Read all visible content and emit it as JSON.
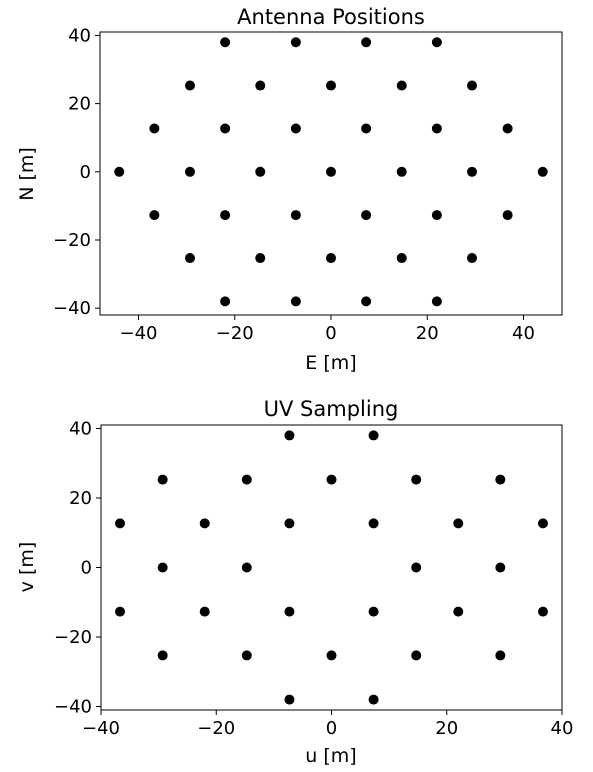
{
  "chart_data": [
    {
      "type": "scatter",
      "title": "Antenna Positions",
      "xlabel": "E [m]",
      "ylabel": "N [m]",
      "xlim": [
        -48,
        48
      ],
      "ylim": [
        -42,
        41
      ],
      "xticks": [
        -40,
        -20,
        0,
        20,
        40
      ],
      "yticks": [
        -40,
        -20,
        0,
        20,
        40
      ],
      "xticklabels": [
        "−40",
        "−20",
        "0",
        "20",
        "40"
      ],
      "yticklabels": [
        "−40",
        "−20",
        "0",
        "20",
        "40"
      ],
      "grid": false,
      "marker_color": "#000000",
      "points": [
        [
          -22,
          38
        ],
        [
          -7.3,
          38
        ],
        [
          7.3,
          38
        ],
        [
          22,
          38
        ],
        [
          -29.3,
          25.3
        ],
        [
          -14.7,
          25.3
        ],
        [
          0,
          25.3
        ],
        [
          14.7,
          25.3
        ],
        [
          29.3,
          25.3
        ],
        [
          -36.7,
          12.7
        ],
        [
          -22,
          12.7
        ],
        [
          -7.3,
          12.7
        ],
        [
          7.3,
          12.7
        ],
        [
          22,
          12.7
        ],
        [
          36.7,
          12.7
        ],
        [
          -44,
          0
        ],
        [
          -29.3,
          0
        ],
        [
          -14.7,
          0
        ],
        [
          0,
          0
        ],
        [
          14.7,
          0
        ],
        [
          29.3,
          0
        ],
        [
          44,
          0
        ],
        [
          -36.7,
          -12.7
        ],
        [
          -22,
          -12.7
        ],
        [
          -7.3,
          -12.7
        ],
        [
          7.3,
          -12.7
        ],
        [
          22,
          -12.7
        ],
        [
          36.7,
          -12.7
        ],
        [
          -29.3,
          -25.3
        ],
        [
          -14.7,
          -25.3
        ],
        [
          0,
          -25.3
        ],
        [
          14.7,
          -25.3
        ],
        [
          29.3,
          -25.3
        ],
        [
          -22,
          -38
        ],
        [
          -7.3,
          -38
        ],
        [
          7.3,
          -38
        ],
        [
          22,
          -38
        ]
      ]
    },
    {
      "type": "scatter",
      "title": "UV Sampling",
      "xlabel": "u [m]",
      "ylabel": "v [m]",
      "xlim": [
        -40,
        40
      ],
      "ylim": [
        -41,
        41
      ],
      "xticks": [
        -40,
        -20,
        0,
        20,
        40
      ],
      "yticks": [
        -40,
        -20,
        0,
        20,
        40
      ],
      "xticklabels": [
        "−40",
        "−20",
        "0",
        "20",
        "40"
      ],
      "yticklabels": [
        "−40",
        "−20",
        "0",
        "20",
        "40"
      ],
      "grid": false,
      "marker_color": "#000000",
      "points": [
        [
          -7.3,
          38
        ],
        [
          7.3,
          38
        ],
        [
          -29.3,
          25.3
        ],
        [
          -14.7,
          25.3
        ],
        [
          0,
          25.3
        ],
        [
          14.7,
          25.3
        ],
        [
          29.3,
          25.3
        ],
        [
          -36.7,
          12.7
        ],
        [
          -22,
          12.7
        ],
        [
          -7.3,
          12.7
        ],
        [
          7.3,
          12.7
        ],
        [
          22,
          12.7
        ],
        [
          36.7,
          12.7
        ],
        [
          -29.3,
          0
        ],
        [
          -14.7,
          0
        ],
        [
          14.7,
          0
        ],
        [
          29.3,
          0
        ],
        [
          -36.7,
          -12.7
        ],
        [
          -22,
          -12.7
        ],
        [
          -7.3,
          -12.7
        ],
        [
          7.3,
          -12.7
        ],
        [
          22,
          -12.7
        ],
        [
          36.7,
          -12.7
        ],
        [
          -29.3,
          -25.3
        ],
        [
          -14.7,
          -25.3
        ],
        [
          0,
          -25.3
        ],
        [
          14.7,
          -25.3
        ],
        [
          29.3,
          -25.3
        ],
        [
          -7.3,
          -38
        ],
        [
          7.3,
          -38
        ]
      ]
    }
  ]
}
